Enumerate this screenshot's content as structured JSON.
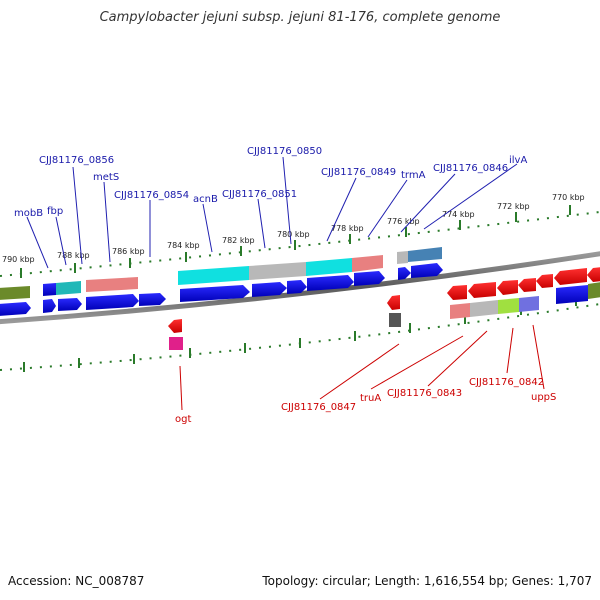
{
  "title": "Campylobacter jejuni subsp. jejuni 81-176, complete genome",
  "accession": "Accession: NC_008787",
  "summary": "Topology: circular; Length: 1,616,554 bp; Genes: 1,707",
  "colors": {
    "forward_label": "#1a1aaa",
    "reverse_label": "#cc0000",
    "tick": "#2a7a2a",
    "backbone": "#7a7a7a"
  },
  "tick_labels": [
    "790 kbp",
    "788 kbp",
    "786 kbp",
    "784 kbp",
    "782 kbp",
    "780 kbp",
    "778 kbp",
    "776 kbp",
    "774 kbp",
    "772 kbp",
    "770 kbp"
  ],
  "forward_labels": [
    "mobB",
    "fbp",
    "CJJ81176_0856",
    "metS",
    "CJJ81176_0854",
    "acnB",
    "CJJ81176_0851",
    "CJJ81176_0850",
    "CJJ81176_0849",
    "trmA",
    "CJJ81176_0846",
    "ilvA"
  ],
  "reverse_labels": [
    "ogt",
    "CJJ81176_0847",
    "truA",
    "CJJ81176_0843",
    "CJJ81176_0842",
    "uppS"
  ]
}
